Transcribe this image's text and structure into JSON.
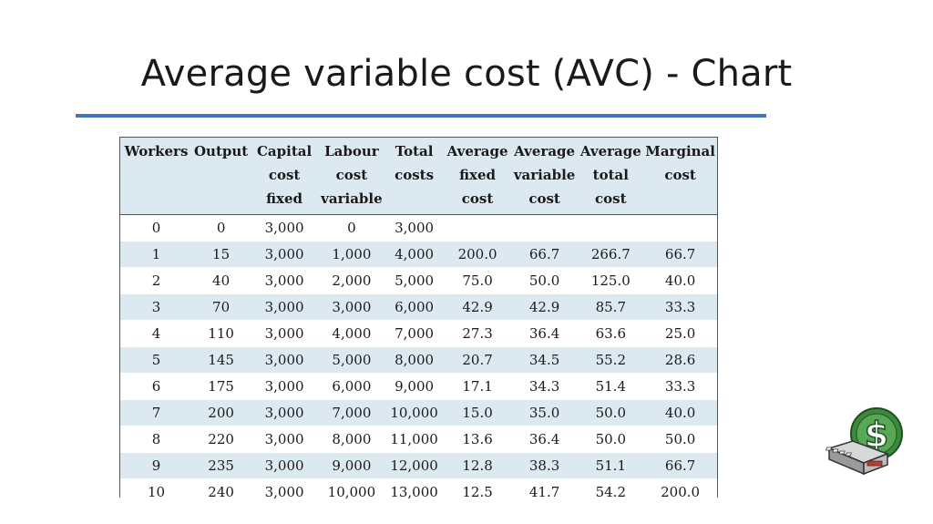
{
  "slide": {
    "title": "Average variable cost (AVC) - Chart"
  },
  "colors": {
    "title_rule": "#4472c4",
    "table_header_bg": "#dce9f1",
    "table_stripe_bg": "#dce9f1"
  },
  "table": {
    "headers": [
      [
        "Workers"
      ],
      [
        "Output"
      ],
      [
        "Capital",
        "cost",
        "fixed"
      ],
      [
        "Labour",
        "cost",
        "variable"
      ],
      [
        "Total",
        "costs"
      ],
      [
        "Average",
        "fixed",
        "cost"
      ],
      [
        "Average",
        "variable",
        "cost"
      ],
      [
        "Average",
        "total",
        "cost"
      ],
      [
        "Marginal",
        "cost"
      ]
    ],
    "rows": [
      [
        "0",
        "0",
        "3,000",
        "0",
        "3,000",
        "",
        "",
        "",
        ""
      ],
      [
        "1",
        "15",
        "3,000",
        "1,000",
        "4,000",
        "200.0",
        "66.7",
        "266.7",
        "66.7"
      ],
      [
        "2",
        "40",
        "3,000",
        "2,000",
        "5,000",
        "75.0",
        "50.0",
        "125.0",
        "40.0"
      ],
      [
        "3",
        "70",
        "3,000",
        "3,000",
        "6,000",
        "42.9",
        "42.9",
        "85.7",
        "33.3"
      ],
      [
        "4",
        "110",
        "3,000",
        "4,000",
        "7,000",
        "27.3",
        "36.4",
        "63.6",
        "25.0"
      ],
      [
        "5",
        "145",
        "3,000",
        "5,000",
        "8,000",
        "20.7",
        "34.5",
        "55.2",
        "28.6"
      ],
      [
        "6",
        "175",
        "3,000",
        "6,000",
        "9,000",
        "17.1",
        "34.3",
        "51.4",
        "33.3"
      ],
      [
        "7",
        "200",
        "3,000",
        "7,000",
        "10,000",
        "15.0",
        "35.0",
        "50.0",
        "40.0"
      ],
      [
        "8",
        "220",
        "3,000",
        "8,000",
        "11,000",
        "13.6",
        "36.4",
        "50.0",
        "50.0"
      ],
      [
        "9",
        "235",
        "3,000",
        "9,000",
        "12,000",
        "12.8",
        "38.3",
        "51.1",
        "66.7"
      ],
      [
        "10",
        "240",
        "3,000",
        "10,000",
        "13,000",
        "12.5",
        "41.7",
        "54.2",
        "200.0"
      ]
    ]
  },
  "decor": {
    "icon": "cash-register-dollar-icon",
    "symbol": "$"
  }
}
